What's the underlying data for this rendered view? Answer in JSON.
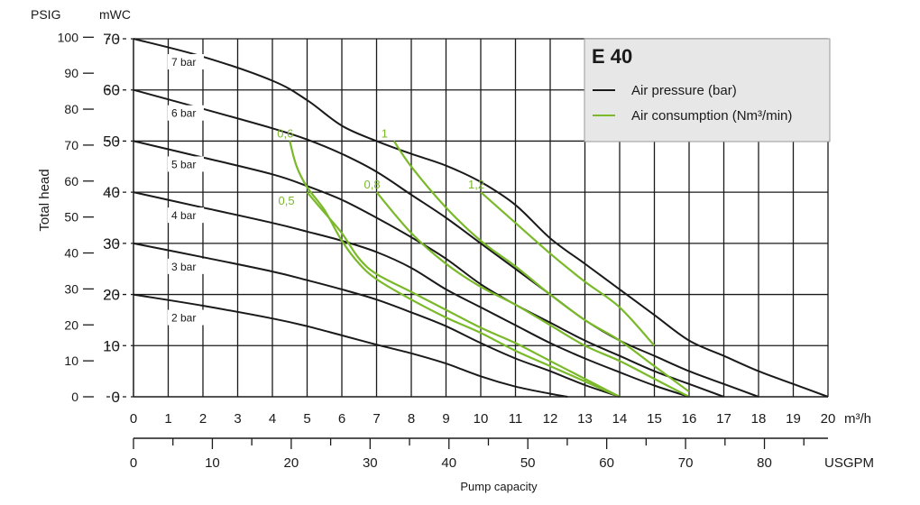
{
  "chart_data": {
    "type": "line",
    "title": "E 40",
    "ylabel": "Total head",
    "xlabel": "Pump capacity",
    "ylim_mwc": [
      0,
      70
    ],
    "xlim_m3h": [
      0,
      20
    ],
    "grid": true,
    "legend_placement": "top-right",
    "units": {
      "psig": "PSIG",
      "mwc": "mWC",
      "m3h": "m³/h",
      "usgpm": "USGPM"
    },
    "y_ticks_mwc": [
      "0",
      "10",
      "20",
      "30",
      "40",
      "50",
      "60",
      "70"
    ],
    "y_ticks_psig": [
      "0",
      "10",
      "20",
      "30",
      "40",
      "50",
      "60",
      "70",
      "80",
      "90",
      "100"
    ],
    "x_ticks_m3h": [
      "0",
      "1",
      "2",
      "3",
      "4",
      "5",
      "6",
      "7",
      "8",
      "9",
      "10",
      "11",
      "12",
      "13",
      "14",
      "15",
      "16",
      "17",
      "18",
      "19",
      "20"
    ],
    "x_ticks_usgpm": [
      "0",
      "10",
      "20",
      "30",
      "40",
      "50",
      "60",
      "70",
      "80"
    ],
    "legend": [
      {
        "label": "Air pressure (bar)",
        "color": "#1a1a1a"
      },
      {
        "label": "Air consumption (Nm³/min)",
        "color": "#7ab929"
      }
    ],
    "colors": {
      "pressure": "#1a1a1a",
      "consumption": "#7ab929"
    },
    "series": [
      {
        "name": "7 bar",
        "x": [
          0,
          2,
          4,
          5,
          6,
          7,
          8,
          9,
          10,
          11,
          12,
          13,
          14,
          15,
          16,
          17,
          18,
          19,
          20
        ],
        "y": [
          70,
          66.5,
          61.8,
          58,
          53,
          50,
          47.5,
          45.2,
          42,
          37.5,
          31,
          26,
          21,
          16,
          11,
          8,
          5,
          2.5,
          0
        ]
      },
      {
        "name": "6 bar",
        "x": [
          0,
          2,
          4,
          5,
          6,
          7,
          8,
          9,
          10,
          11,
          12,
          13,
          14,
          15,
          16,
          17,
          18
        ],
        "y": [
          60,
          56.3,
          52.5,
          50.3,
          47.5,
          44,
          39.5,
          35,
          30,
          25,
          20,
          15,
          11,
          8,
          5,
          2.5,
          0
        ]
      },
      {
        "name": "5 bar",
        "x": [
          0,
          2,
          4,
          5,
          6,
          7,
          8,
          9,
          10,
          11,
          12,
          13,
          14,
          15,
          16,
          17
        ],
        "y": [
          50,
          46.8,
          43.5,
          41.2,
          38.5,
          35,
          31.2,
          27,
          22,
          18,
          14.5,
          11,
          8,
          5,
          2.5,
          0
        ]
      },
      {
        "name": "4 bar",
        "x": [
          0,
          2,
          4,
          5,
          6,
          7,
          8,
          9,
          10,
          11,
          12,
          13,
          14,
          15,
          16
        ],
        "y": [
          40,
          37,
          34,
          32.3,
          30.5,
          28.3,
          25.2,
          21,
          17.5,
          14,
          10.5,
          7.5,
          4.8,
          2.2,
          0
        ]
      },
      {
        "name": "3 bar",
        "x": [
          0,
          2,
          4,
          5,
          6,
          7,
          8,
          9,
          10,
          11,
          12,
          13,
          14
        ],
        "y": [
          30,
          27.3,
          24.5,
          22.8,
          21,
          19,
          16.5,
          13.8,
          10.5,
          7.5,
          5,
          2.3,
          0
        ]
      },
      {
        "name": "2 bar",
        "x": [
          0,
          2,
          4,
          5,
          6,
          7,
          8,
          9,
          10,
          11,
          12,
          12.5
        ],
        "y": [
          20,
          17.8,
          15.3,
          13.8,
          12,
          10.2,
          8.5,
          6.5,
          4,
          2,
          0.6,
          0
        ]
      },
      {
        "name": "0,5",
        "x": [
          5,
          5.5,
          6,
          6.5,
          7,
          8,
          9,
          10,
          11,
          12,
          13,
          14
        ],
        "y": [
          40,
          36,
          32,
          27,
          24,
          20.5,
          17,
          13.5,
          10.5,
          7,
          3.5,
          0
        ]
      },
      {
        "name": "0,6",
        "x": [
          4.5,
          4.7,
          5,
          5.5,
          6,
          6.5,
          7,
          8,
          9,
          10,
          11,
          12,
          13,
          14
        ],
        "y": [
          50,
          45,
          41,
          36.5,
          30.5,
          26,
          23,
          19,
          15.5,
          12.5,
          9,
          6,
          3,
          0
        ]
      },
      {
        "name": "0,8",
        "x": [
          7,
          8,
          9,
          10,
          11,
          12,
          13,
          14,
          15,
          16
        ],
        "y": [
          40,
          32,
          26,
          21.5,
          18,
          14,
          10,
          7,
          3.5,
          0
        ]
      },
      {
        "name": "1",
        "x": [
          7.5,
          8,
          9,
          10,
          11,
          12,
          13,
          14,
          15,
          16
        ],
        "y": [
          50,
          45,
          37,
          30.5,
          25.5,
          20,
          15,
          11,
          6,
          1
        ]
      },
      {
        "name": "1,2",
        "x": [
          10,
          11,
          12,
          13,
          14,
          15
        ],
        "y": [
          40,
          34,
          28,
          22.5,
          17.5,
          10
        ]
      }
    ],
    "pressure_labels": [
      {
        "text": "7 bar",
        "series": "7 bar"
      },
      {
        "text": "6 bar",
        "series": "6 bar"
      },
      {
        "text": "5 bar",
        "series": "5 bar"
      },
      {
        "text": "4 bar",
        "series": "4 bar"
      },
      {
        "text": "3 bar",
        "series": "3 bar"
      },
      {
        "text": "2 bar",
        "series": "2 bar"
      }
    ],
    "consumption_labels": [
      {
        "text": "0,6",
        "series": "0,6"
      },
      {
        "text": "0,5",
        "series": "0,5"
      },
      {
        "text": "0,8",
        "series": "0,8"
      },
      {
        "text": "1",
        "series": "1"
      },
      {
        "text": "1,2",
        "series": "1,2"
      }
    ]
  }
}
